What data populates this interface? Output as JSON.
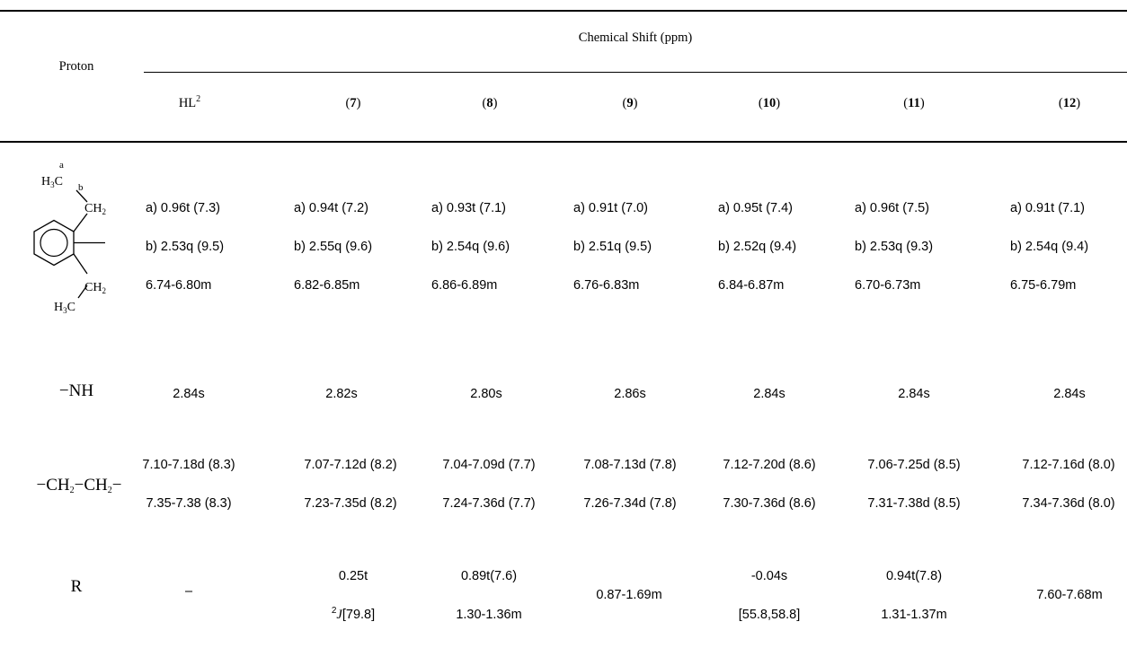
{
  "table": {
    "header": {
      "proton": "Proton",
      "group": "Chemical Shift (ppm)",
      "columns": [
        {
          "base": "HL",
          "sup": "2",
          "bold": false
        },
        {
          "base": "7",
          "paren": true,
          "bold": true
        },
        {
          "base": "8",
          "paren": true,
          "bold": true
        },
        {
          "base": "9",
          "paren": true,
          "bold": true
        },
        {
          "base": "10",
          "paren": true,
          "bold": true
        },
        {
          "base": "11",
          "paren": true,
          "bold": true
        },
        {
          "base": "12",
          "paren": true,
          "bold": true
        }
      ]
    },
    "structure": {
      "label_a": "a",
      "label_b": "b",
      "h3c_top_main": "H",
      "h3c_top_sub": "3",
      "h3c_top_c": "C",
      "ch2_top_main": "CH",
      "ch2_top_sub": "2",
      "ch2_bot_main": "CH",
      "ch2_bot_sub": "2",
      "h3c_bot_main": "H",
      "h3c_bot_sub": "3",
      "h3c_bot_c": "C"
    },
    "rows": {
      "aryl": {
        "line_a": [
          "a) 0.96t (7.3)",
          "a) 0.94t (7.2)",
          "a) 0.93t (7.1)",
          "a) 0.91t (7.0)",
          "a) 0.95t (7.4)",
          "a) 0.96t (7.5)",
          "a) 0.91t (7.1)"
        ],
        "line_b": [
          "b) 2.53q (9.5)",
          "b) 2.55q (9.6)",
          "b) 2.54q (9.6)",
          "b) 2.51q (9.5)",
          "b) 2.52q (9.4)",
          "b) 2.53q (9.3)",
          "b) 2.54q (9.4)"
        ],
        "line_c": [
          "6.74-6.80m",
          "6.82-6.85m",
          "6.86-6.89m",
          "6.76-6.83m",
          "6.84-6.87m",
          "6.70-6.73m",
          "6.75-6.79m"
        ]
      },
      "nh": {
        "label": "−NH",
        "values": [
          "2.84s",
          "2.82s",
          "2.80s",
          "2.86s",
          "2.84s",
          "2.84s",
          "2.84s"
        ]
      },
      "ch2ch2": {
        "label_parts": [
          "−CH",
          "2",
          "−CH",
          "2",
          "−"
        ],
        "line1": [
          "7.10-7.18d (8.3)",
          "7.07-7.12d (8.2)",
          "7.04-7.09d (7.7)",
          "7.08-7.13d (7.8)",
          "7.12-7.20d (8.6)",
          "7.06-7.25d (8.5)",
          "7.12-7.16d (8.0)"
        ],
        "line2": [
          "7.35-7.38 (8.3)",
          "7.23-7.35d (8.2)",
          "7.24-7.36d (7.7)",
          "7.26-7.34d (7.8)",
          "7.30-7.36d (8.6)",
          "7.31-7.38d (8.5)",
          "7.34-7.36d (8.0)"
        ]
      },
      "r": {
        "label": "R",
        "hl2": "–",
        "c7_line1": "0.25t",
        "c7_sup": "2",
        "c7_j": "J",
        "c7_line2_rest": "[79.8]",
        "c8_line1": "0.89t(7.6)",
        "c8_line2": "1.30-1.36m",
        "c9": "0.87-1.69m",
        "c10_line1": "-0.04s",
        "c10_line2": "[55.8,58.8]",
        "c11_line1": "0.94t(7.8)",
        "c11_line2": "1.31-1.37m",
        "c12": "7.60-7.68m"
      }
    }
  }
}
